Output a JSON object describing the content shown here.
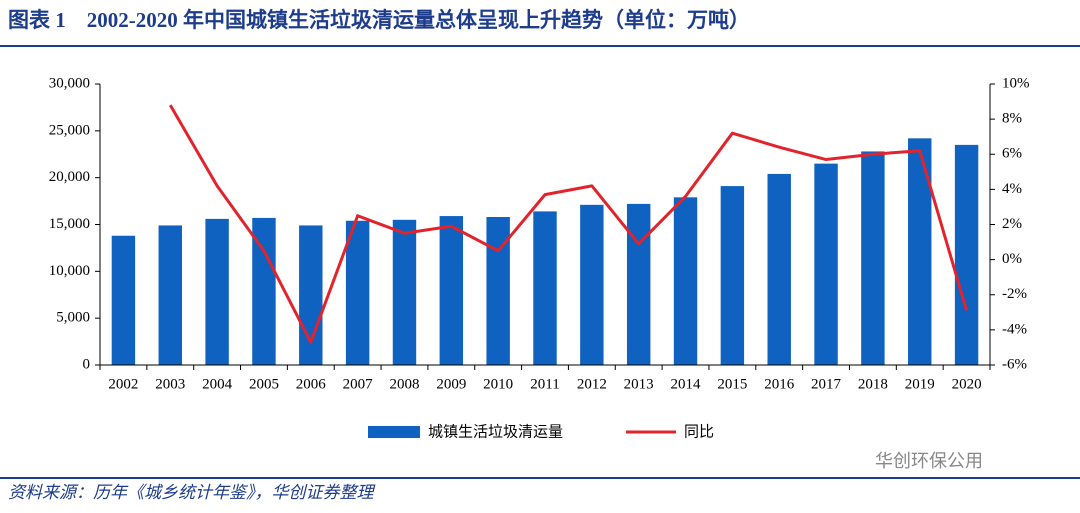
{
  "chart_data": {
    "type": "bar-line",
    "title": "图表 1　2002-2020 年中国城镇生活垃圾清运量总体呈现上升趋势（单位：万吨）",
    "categories": [
      "2002",
      "2003",
      "2004",
      "2005",
      "2006",
      "2007",
      "2008",
      "2009",
      "2010",
      "2011",
      "2012",
      "2013",
      "2014",
      "2015",
      "2016",
      "2017",
      "2018",
      "2019",
      "2020"
    ],
    "series": [
      {
        "name": "城镇生活垃圾清运量",
        "type": "bar",
        "color": "#0f62bf",
        "values": [
          13800,
          14900,
          15600,
          15700,
          14900,
          15400,
          15500,
          15900,
          15800,
          16400,
          17100,
          17200,
          17900,
          19100,
          20400,
          21500,
          22800,
          24200,
          23500
        ]
      },
      {
        "name": "同比",
        "type": "line",
        "axis": "y2",
        "color": "#e3232c",
        "values": [
          null,
          8.8,
          4.2,
          0.5,
          -4.7,
          2.5,
          1.5,
          1.9,
          0.5,
          3.7,
          4.2,
          0.9,
          3.6,
          7.2,
          6.4,
          5.7,
          6.0,
          6.2,
          -2.9
        ]
      }
    ],
    "ylim": [
      0,
      30000
    ],
    "yticks": [
      0,
      {
        "value": 5000,
        "label": "5,000"
      },
      {
        "value": 10000,
        "label": "10,000"
      },
      {
        "value": 15000,
        "label": "15,000"
      },
      {
        "value": 20000,
        "label": "20,000"
      },
      {
        "value": 25000,
        "label": "25,000"
      },
      {
        "value": 30000,
        "label": "30,000"
      }
    ],
    "y2lim": [
      -6,
      10
    ],
    "y2ticks": [
      {
        "value": -6,
        "label": "-6%"
      },
      {
        "value": -4,
        "label": "-4%"
      },
      {
        "value": -2,
        "label": "-2%"
      },
      {
        "value": 0,
        "label": "0%"
      },
      {
        "value": 2,
        "label": "2%"
      },
      {
        "value": 4,
        "label": "4%"
      },
      {
        "value": 6,
        "label": "6%"
      },
      {
        "value": 8,
        "label": "8%"
      },
      {
        "value": 10,
        "label": "10%"
      }
    ],
    "grid": false,
    "legend": "bottom"
  },
  "source": "资料来源：历年《城乡统计年鉴》，华创证券整理",
  "watermark": "华创环保公用"
}
